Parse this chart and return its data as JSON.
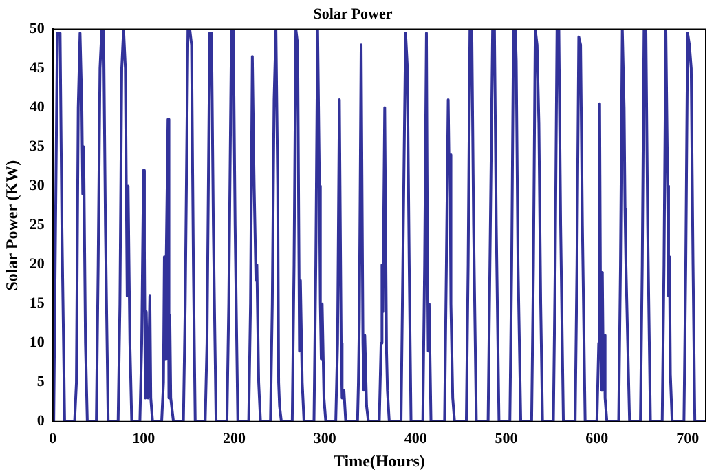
{
  "chart_data": {
    "type": "line",
    "title": "Solar Power",
    "xlabel": "Time(Hours)",
    "ylabel": "Solar Power (KW)",
    "x": [
      0,
      1,
      3,
      5,
      8,
      10,
      13,
      24,
      26,
      28,
      30,
      32,
      33,
      34,
      36,
      38,
      48,
      50,
      52,
      54,
      56,
      58,
      61,
      72,
      74,
      76,
      78,
      80,
      82,
      83,
      85,
      87,
      96,
      98,
      100,
      101,
      102,
      103,
      105,
      107,
      108,
      110,
      120,
      122,
      123,
      124,
      125,
      127,
      128,
      129,
      130,
      133,
      144,
      146,
      149,
      151,
      153,
      155,
      157,
      168,
      170,
      173,
      175,
      177,
      180,
      192,
      194,
      197,
      199,
      201,
      204,
      216,
      218,
      220,
      222,
      223,
      224,
      225,
      227,
      229,
      240,
      242,
      244,
      246,
      248,
      249,
      250,
      252,
      264,
      266,
      268,
      270,
      272,
      273,
      275,
      277,
      288,
      290,
      292,
      294,
      295,
      296,
      297,
      299,
      301,
      312,
      314,
      316,
      318,
      319,
      321,
      323,
      336,
      337,
      338,
      340,
      342,
      343,
      344,
      346,
      348,
      360,
      362,
      363,
      364,
      366,
      368,
      369,
      371,
      384,
      386,
      389,
      391,
      393,
      395,
      408,
      410,
      412,
      413,
      414,
      415,
      417,
      432,
      434,
      436,
      437,
      438,
      439,
      441,
      443,
      456,
      458,
      460,
      462,
      464,
      467,
      480,
      482,
      485,
      487,
      489,
      492,
      504,
      506,
      508,
      510,
      511,
      513,
      516,
      528,
      530,
      532,
      534,
      536,
      538,
      540,
      552,
      554,
      556,
      558,
      560,
      563,
      576,
      578,
      580,
      582,
      584,
      587,
      600,
      602,
      603,
      604,
      605,
      606,
      607,
      608,
      609,
      611,
      624,
      626,
      628,
      630,
      631,
      632,
      634,
      636,
      648,
      650,
      652,
      654,
      656,
      659,
      672,
      674,
      676,
      678,
      679,
      680,
      681,
      683,
      696,
      698,
      700,
      702,
      704,
      706,
      708,
      720
    ],
    "series": [
      {
        "color": "#32329a",
        "values": [
          0,
          0,
          25,
          49.5,
          49.5,
          25,
          0,
          0,
          5,
          40,
          49.5,
          40,
          29,
          35,
          10,
          0,
          0,
          20,
          45,
          50,
          50,
          25,
          0,
          0,
          15,
          45,
          50,
          45,
          16,
          30,
          10,
          0,
          0,
          10,
          32,
          22,
          3,
          14,
          3,
          16,
          3,
          0,
          0,
          5,
          21,
          8,
          20,
          38.5,
          3,
          13.5,
          3,
          0,
          0,
          15,
          50,
          50,
          48,
          20,
          0,
          0,
          10,
          49.5,
          49.5,
          25,
          0,
          0,
          15,
          50,
          50,
          25,
          0,
          0,
          15,
          46.5,
          30,
          24,
          18,
          20,
          5,
          0,
          0,
          15,
          41,
          50,
          30,
          5,
          2,
          0,
          0,
          20,
          50,
          48,
          9,
          18,
          5,
          0,
          0,
          20,
          50,
          30,
          15,
          8,
          15,
          3,
          0,
          0,
          10,
          41,
          10,
          3,
          4,
          0,
          0,
          5,
          13,
          48,
          10,
          4,
          11,
          2,
          0,
          0,
          10,
          20,
          14,
          40,
          9,
          4,
          0,
          0,
          20,
          49.5,
          45,
          20,
          0,
          0,
          20,
          49.5,
          24,
          9,
          15,
          0,
          0,
          20,
          41,
          32,
          34,
          15,
          3,
          0,
          0,
          20,
          50,
          50,
          25,
          0,
          0,
          20,
          50,
          50,
          25,
          0,
          0,
          20,
          50,
          50,
          46,
          20,
          0,
          0,
          20,
          50,
          48,
          38,
          15,
          0,
          0,
          20,
          50,
          50,
          25,
          0,
          0,
          20,
          49,
          48,
          25,
          0,
          0,
          10,
          40.5,
          15,
          4,
          19,
          6,
          11,
          3,
          0,
          0,
          20,
          50,
          40,
          27,
          20,
          10,
          0,
          0,
          20,
          50,
          50,
          25,
          0,
          0,
          20,
          50,
          30,
          16,
          21,
          6,
          0,
          0,
          20,
          49.5,
          48,
          45,
          20,
          0,
          0
        ]
      }
    ],
    "xlim": [
      0,
      720
    ],
    "xticks": [
      0,
      100,
      200,
      300,
      400,
      500,
      600,
      700
    ],
    "ylim": [
      0,
      50
    ],
    "yticks": [
      0,
      5,
      10,
      15,
      20,
      25,
      30,
      35,
      40,
      45,
      50
    ],
    "grid": false,
    "legend": false,
    "marker": "none",
    "line_style": "solid"
  }
}
